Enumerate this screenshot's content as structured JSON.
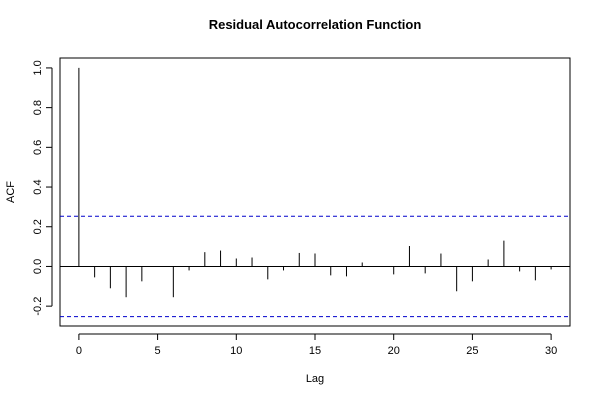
{
  "chart_data": {
    "type": "bar",
    "title": "Residual Autocorrelation Function",
    "xlabel": "Lag",
    "ylabel": "ACF",
    "xlim": [
      -1.2,
      31.2
    ],
    "ylim": [
      -0.3,
      1.05
    ],
    "xticks": [
      0,
      5,
      10,
      15,
      20,
      25,
      30
    ],
    "yticks": [
      -0.2,
      0.0,
      0.2,
      0.4,
      0.6,
      0.8,
      1.0
    ],
    "ytick_labels": [
      "-0.2",
      "0.0",
      "0.2",
      "0.4",
      "0.6",
      "0.8",
      "1.0"
    ],
    "lags": [
      0,
      1,
      2,
      3,
      4,
      5,
      6,
      7,
      8,
      9,
      10,
      11,
      12,
      13,
      14,
      15,
      16,
      17,
      18,
      19,
      20,
      21,
      22,
      23,
      24,
      25,
      26,
      27,
      28,
      29,
      30
    ],
    "values": [
      1.0,
      -0.055,
      -0.11,
      -0.155,
      -0.075,
      0.0,
      -0.155,
      -0.02,
      0.072,
      0.08,
      0.04,
      0.045,
      -0.065,
      -0.02,
      0.068,
      0.065,
      -0.045,
      -0.05,
      0.02,
      0.0,
      -0.04,
      0.103,
      -0.035,
      0.065,
      -0.125,
      -0.075,
      0.035,
      0.13,
      -0.025,
      -0.07,
      -0.015
    ],
    "confidence_band": [
      0.253,
      -0.253
    ],
    "colors": {
      "bars": "#000000",
      "band": "#0000cc",
      "axis": "#000000"
    },
    "grid": false
  }
}
